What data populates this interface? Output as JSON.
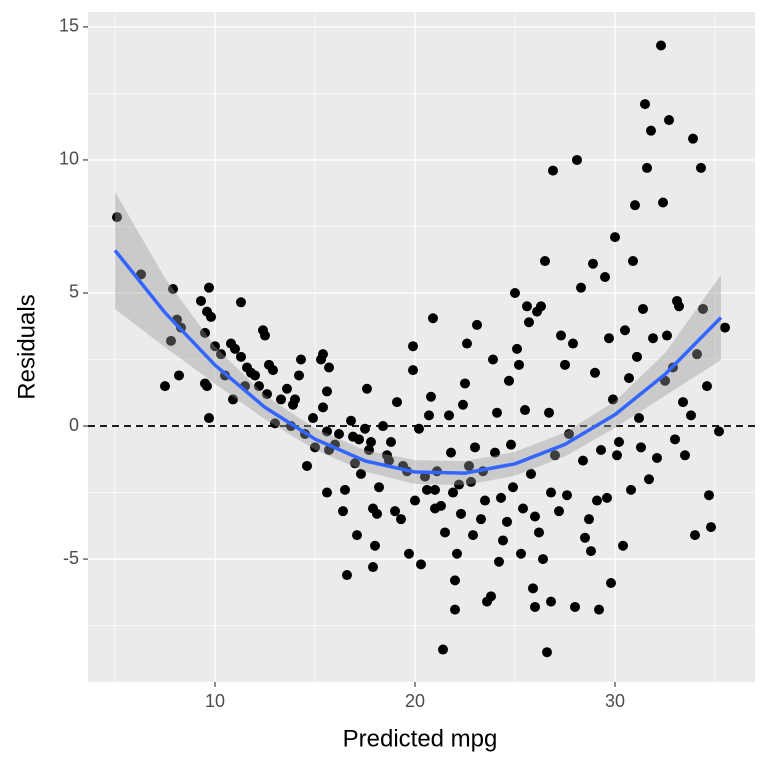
{
  "chart_data": {
    "type": "scatter",
    "xlabel": "Predicted mpg",
    "ylabel": "Residuals",
    "xlim": [
      3.65,
      37.0
    ],
    "ylim": [
      -9.62,
      15.56
    ],
    "xticks": [
      10,
      20,
      30
    ],
    "yticks": [
      -5,
      0,
      5,
      10,
      15
    ],
    "grid": true,
    "background": "#ebebeb",
    "color": "#000000",
    "hline": 0,
    "x": [
      5.1,
      6.3,
      7.5,
      7.9,
      7.8,
      8.1,
      8.2,
      8.3,
      9.3,
      9.6,
      9.7,
      9.8,
      9.5,
      9.6,
      9.7,
      9.5,
      10,
      10.3,
      10.5,
      10.8,
      11,
      11.3,
      10.9,
      11.3,
      11.5,
      11.8,
      12,
      12.4,
      12.5,
      12.7,
      12.9,
      12.6,
      13.0,
      13.3,
      13.6,
      13.8,
      14.0,
      14.3,
      14.2,
      14.5,
      14.6,
      15,
      15.3,
      15.4,
      15.7,
      15.6,
      15.4,
      15.6,
      15.7,
      15.6,
      16.2,
      16.5,
      16.4,
      16.6,
      16.8,
      17.0,
      17.2,
      17.3,
      17.1,
      17.6,
      17.5,
      17.8,
      17.9,
      18.1,
      18.2,
      18.0,
      17.9,
      18.4,
      18.8,
      19.1,
      18.7,
      19.0,
      19.3,
      19.4,
      19.7,
      19.9,
      19.9,
      20.0,
      20.3,
      20.2,
      20.5,
      20.7,
      20.9,
      20.8,
      21,
      21.0,
      21.1,
      21.3,
      21.4,
      21.5,
      21.7,
      21.8,
      22.0,
      22.0,
      22.1,
      22.2,
      22.3,
      22.4,
      22.5,
      22.6,
      22.7,
      22.9,
      23.0,
      23.1,
      23.3,
      23.5,
      23.6,
      23.8,
      23.9,
      24.0,
      24.1,
      24.2,
      24.4,
      24.6,
      24.7,
      24.8,
      24.9,
      25.0,
      25.1,
      25.2,
      25.3,
      25.4,
      25.5,
      25.6,
      25.7,
      25.8,
      25.9,
      26.0,
      26.1,
      26.2,
      26.3,
      26.4,
      26.5,
      26.6,
      26.7,
      26.8,
      26.9,
      26.8,
      27.0,
      27.2,
      27.3,
      27.5,
      27.7,
      27.9,
      28.0,
      28.1,
      28.3,
      28.4,
      28.5,
      28.7,
      28.8,
      28.9,
      29.0,
      29.2,
      29.3,
      29.5,
      29.6,
      29.7,
      29.8,
      29.9,
      30.0,
      30.1,
      30.2,
      30.4,
      30.5,
      30.7,
      30.9,
      31.0,
      31.1,
      31.2,
      31.3,
      31.4,
      31.5,
      31.6,
      31.8,
      31.9,
      32.1,
      32.3,
      32.4,
      32.5,
      32.6,
      32.7,
      32.9,
      33.1,
      33.2,
      33.4,
      33.5,
      33.8,
      33.9,
      34.0,
      34.3,
      34.4,
      34.6,
      34.7,
      34.8,
      35.2,
      35.5,
      34.1,
      33.0,
      31.7,
      30.8,
      29.1,
      27.6,
      26.0,
      24.3,
      23.4,
      22.8,
      21.9,
      20.6,
      19.6,
      18.6,
      17.7,
      16.9,
      16.0,
      14.9,
      13.9,
      12.2,
      11.6
    ],
    "y": [
      7.85,
      5.7,
      1.5,
      5.15,
      3.2,
      4.0,
      1.9,
      3.7,
      4.7,
      4.3,
      5.2,
      4.1,
      1.6,
      1.5,
      0.3,
      3.5,
      3.0,
      2.7,
      1.9,
      3.1,
      2.9,
      2.6,
      1.0,
      4.65,
      1.5,
      2.0,
      1.9,
      3.6,
      3.4,
      2.3,
      2.1,
      1.2,
      0.1,
      1.0,
      1.4,
      0.0,
      1.0,
      2.5,
      1.9,
      -0.3,
      -1.5,
      -0.8,
      2.5,
      2.7,
      2.2,
      1.3,
      0.7,
      -0.2,
      -0.9,
      -2.5,
      -0.3,
      -2.4,
      -3.2,
      -5.6,
      0.2,
      -1.4,
      -0.5,
      -1.8,
      -4.1,
      1.4,
      -0.1,
      -0.6,
      -3.1,
      -3.3,
      -2.3,
      -4.5,
      -5.3,
      0.0,
      -0.6,
      0.9,
      -1.3,
      -3.2,
      -3.5,
      -1.5,
      -4.8,
      2.1,
      3.0,
      -2.8,
      -5.2,
      -0.1,
      -1.9,
      0.4,
      4.05,
      1.1,
      -2.4,
      -3.1,
      -1.7,
      -3.0,
      -8.4,
      -4.0,
      0.4,
      -1.0,
      -5.8,
      -6.9,
      -4.8,
      -2.2,
      -3.3,
      0.8,
      1.6,
      3.1,
      -1.5,
      -4.1,
      -0.8,
      3.8,
      -3.5,
      -2.8,
      -6.6,
      -6.4,
      2.5,
      -1.0,
      0.5,
      -5.1,
      -4.3,
      -3.6,
      1.7,
      -0.7,
      -2.3,
      5.0,
      2.9,
      2.3,
      -4.8,
      -3.1,
      0.6,
      4.5,
      3.9,
      -1.8,
      -6.1,
      -6.8,
      4.3,
      -4.0,
      4.5,
      -5.0,
      6.2,
      -8.5,
      0.5,
      -2.5,
      9.6,
      -6.6,
      -1.1,
      -3.2,
      3.4,
      2.3,
      -0.3,
      3.1,
      -6.8,
      10.0,
      5.2,
      -1.3,
      -4.2,
      -3.5,
      -4.7,
      6.1,
      2.0,
      -6.9,
      -0.9,
      5.6,
      -2.7,
      3.3,
      -5.9,
      1.0,
      7.1,
      -1.1,
      -0.6,
      -4.5,
      3.6,
      1.8,
      6.2,
      8.3,
      2.6,
      0.3,
      -0.8,
      4.4,
      12.1,
      9.7,
      11.1,
      3.3,
      -1.2,
      14.3,
      8.4,
      1.7,
      3.4,
      11.5,
      2.2,
      4.7,
      4.5,
      0.9,
      -1.1,
      0.4,
      10.8,
      -4.1,
      9.7,
      4.4,
      1.5,
      -2.6,
      -3.8,
      -0.2,
      3.7,
      2.7,
      -0.5,
      -2.0,
      -2.4,
      -2.8,
      -2.6,
      -3.4,
      -2.7,
      -1.7,
      -2.1,
      -2.5,
      -2.4,
      -1.7,
      -1.1,
      -0.9,
      -0.4,
      -0.7,
      0.3,
      0.8,
      1.5,
      2.2
    ],
    "smooth": {
      "color": "#3366ff",
      "band_color": "#999999",
      "x": [
        5,
        7.5,
        10,
        12.5,
        15,
        17.5,
        20,
        22.5,
        25,
        27.5,
        30,
        32.5,
        35.3
      ],
      "y": [
        6.6,
        4.26,
        2.29,
        0.7,
        -0.49,
        -1.31,
        -1.73,
        -1.77,
        -1.42,
        -0.69,
        0.43,
        1.94,
        4.08
      ],
      "lower": [
        4.4,
        2.96,
        1.59,
        0.25,
        -0.89,
        -1.71,
        -2.18,
        -2.22,
        -1.87,
        -1.14,
        -0.07,
        1.14,
        2.48
      ],
      "upper": [
        8.8,
        5.56,
        2.99,
        1.15,
        -0.09,
        -0.91,
        -1.28,
        -1.32,
        -0.97,
        -0.24,
        0.93,
        2.74,
        5.68
      ]
    }
  }
}
